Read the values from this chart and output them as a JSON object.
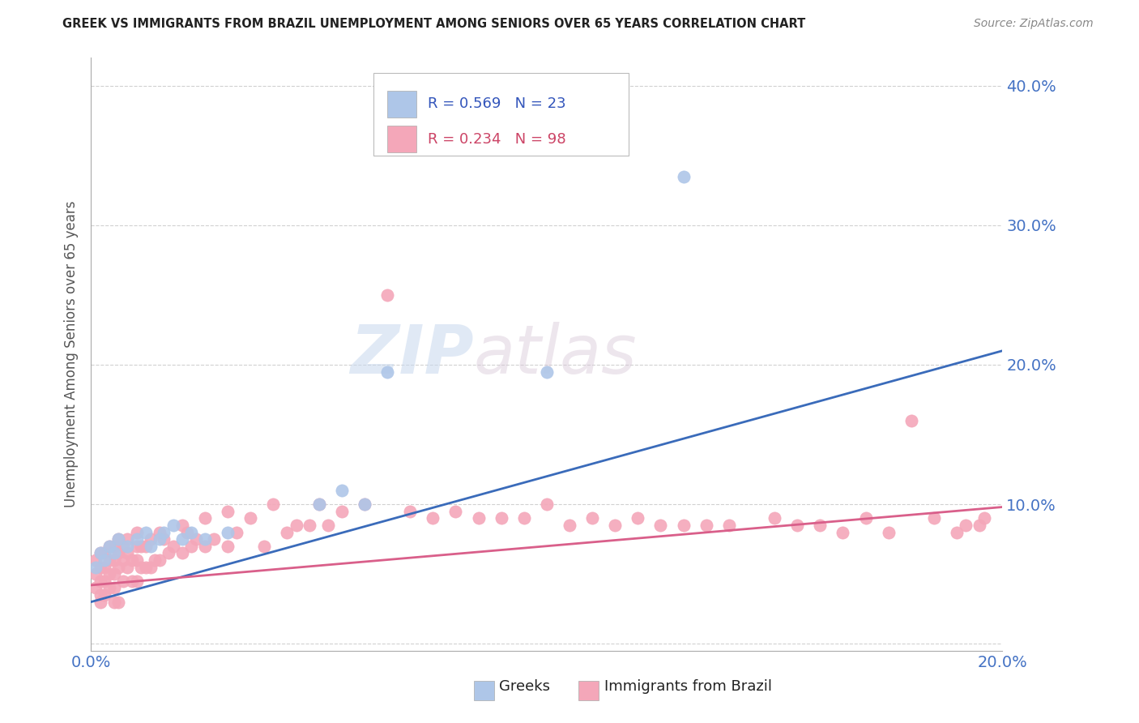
{
  "title": "GREEK VS IMMIGRANTS FROM BRAZIL UNEMPLOYMENT AMONG SENIORS OVER 65 YEARS CORRELATION CHART",
  "source": "Source: ZipAtlas.com",
  "ylabel": "Unemployment Among Seniors over 65 years",
  "xmin": 0.0,
  "xmax": 0.2,
  "ymin": -0.005,
  "ymax": 0.42,
  "yticks": [
    0.0,
    0.1,
    0.2,
    0.3,
    0.4
  ],
  "ytick_labels": [
    "",
    "10.0%",
    "20.0%",
    "30.0%",
    "40.0%"
  ],
  "legend_r_blue": "R = 0.569",
  "legend_n_blue": "N = 23",
  "legend_r_pink": "R = 0.234",
  "legend_n_pink": "N = 98",
  "blue_color": "#aec6e8",
  "pink_color": "#f4a7b9",
  "blue_line_color": "#3a6bba",
  "pink_line_color": "#d95f8a",
  "watermark_zip": "ZIP",
  "watermark_atlas": "atlas",
  "greeks_label": "Greeks",
  "brazil_label": "Immigrants from Brazil",
  "blue_line_x0": 0.0,
  "blue_line_y0": 0.03,
  "blue_line_x1": 0.2,
  "blue_line_y1": 0.21,
  "pink_line_x0": 0.0,
  "pink_line_y0": 0.042,
  "pink_line_x1": 0.2,
  "pink_line_y1": 0.098,
  "blue_scatter_x": [
    0.001,
    0.002,
    0.003,
    0.004,
    0.005,
    0.006,
    0.008,
    0.01,
    0.012,
    0.013,
    0.015,
    0.016,
    0.018,
    0.02,
    0.022,
    0.025,
    0.03,
    0.05,
    0.055,
    0.06,
    0.065,
    0.1,
    0.13
  ],
  "blue_scatter_y": [
    0.055,
    0.065,
    0.06,
    0.07,
    0.065,
    0.075,
    0.07,
    0.075,
    0.08,
    0.07,
    0.075,
    0.08,
    0.085,
    0.075,
    0.08,
    0.075,
    0.08,
    0.1,
    0.11,
    0.1,
    0.195,
    0.195,
    0.335
  ],
  "pink_scatter_x": [
    0.001,
    0.001,
    0.001,
    0.002,
    0.002,
    0.002,
    0.002,
    0.002,
    0.003,
    0.003,
    0.003,
    0.003,
    0.004,
    0.004,
    0.004,
    0.004,
    0.005,
    0.005,
    0.005,
    0.005,
    0.005,
    0.006,
    0.006,
    0.006,
    0.006,
    0.007,
    0.007,
    0.007,
    0.008,
    0.008,
    0.008,
    0.009,
    0.009,
    0.01,
    0.01,
    0.01,
    0.01,
    0.011,
    0.011,
    0.012,
    0.012,
    0.013,
    0.013,
    0.014,
    0.015,
    0.015,
    0.016,
    0.017,
    0.018,
    0.02,
    0.02,
    0.021,
    0.022,
    0.023,
    0.025,
    0.025,
    0.027,
    0.03,
    0.03,
    0.032,
    0.035,
    0.038,
    0.04,
    0.043,
    0.045,
    0.048,
    0.05,
    0.052,
    0.055,
    0.06,
    0.065,
    0.07,
    0.075,
    0.08,
    0.085,
    0.09,
    0.095,
    0.1,
    0.105,
    0.11,
    0.115,
    0.12,
    0.125,
    0.13,
    0.135,
    0.14,
    0.15,
    0.155,
    0.16,
    0.165,
    0.17,
    0.175,
    0.18,
    0.185,
    0.19,
    0.192,
    0.195,
    0.196
  ],
  "pink_scatter_y": [
    0.05,
    0.06,
    0.04,
    0.055,
    0.065,
    0.045,
    0.035,
    0.03,
    0.055,
    0.065,
    0.045,
    0.035,
    0.06,
    0.07,
    0.05,
    0.04,
    0.06,
    0.07,
    0.05,
    0.04,
    0.03,
    0.065,
    0.075,
    0.055,
    0.03,
    0.06,
    0.07,
    0.045,
    0.065,
    0.075,
    0.055,
    0.06,
    0.045,
    0.07,
    0.08,
    0.06,
    0.045,
    0.07,
    0.055,
    0.07,
    0.055,
    0.075,
    0.055,
    0.06,
    0.08,
    0.06,
    0.075,
    0.065,
    0.07,
    0.085,
    0.065,
    0.08,
    0.07,
    0.075,
    0.09,
    0.07,
    0.075,
    0.095,
    0.07,
    0.08,
    0.09,
    0.07,
    0.1,
    0.08,
    0.085,
    0.085,
    0.1,
    0.085,
    0.095,
    0.1,
    0.25,
    0.095,
    0.09,
    0.095,
    0.09,
    0.09,
    0.09,
    0.1,
    0.085,
    0.09,
    0.085,
    0.09,
    0.085,
    0.085,
    0.085,
    0.085,
    0.09,
    0.085,
    0.085,
    0.08,
    0.09,
    0.08,
    0.16,
    0.09,
    0.08,
    0.085,
    0.085,
    0.09
  ]
}
